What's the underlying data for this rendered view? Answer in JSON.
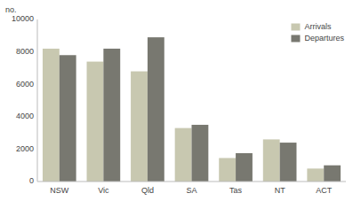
{
  "chart_data": {
    "type": "bar",
    "categories": [
      "NSW",
      "Vic",
      "Qld",
      "SA",
      "Tas",
      "NT",
      "ACT"
    ],
    "series": [
      {
        "name": "Arrivals",
        "color": "#c8c8b0",
        "values": [
          8200,
          7400,
          6800,
          3300,
          1450,
          2600,
          800
        ]
      },
      {
        "name": "Departures",
        "color": "#787870",
        "values": [
          7800,
          8200,
          8900,
          3500,
          1750,
          2400,
          1000
        ]
      }
    ],
    "ylabel": "no.",
    "ylim": [
      0,
      10000
    ],
    "yticks": [
      0,
      2000,
      4000,
      6000,
      8000,
      10000
    ],
    "grid": false,
    "legend": "upper-right"
  }
}
